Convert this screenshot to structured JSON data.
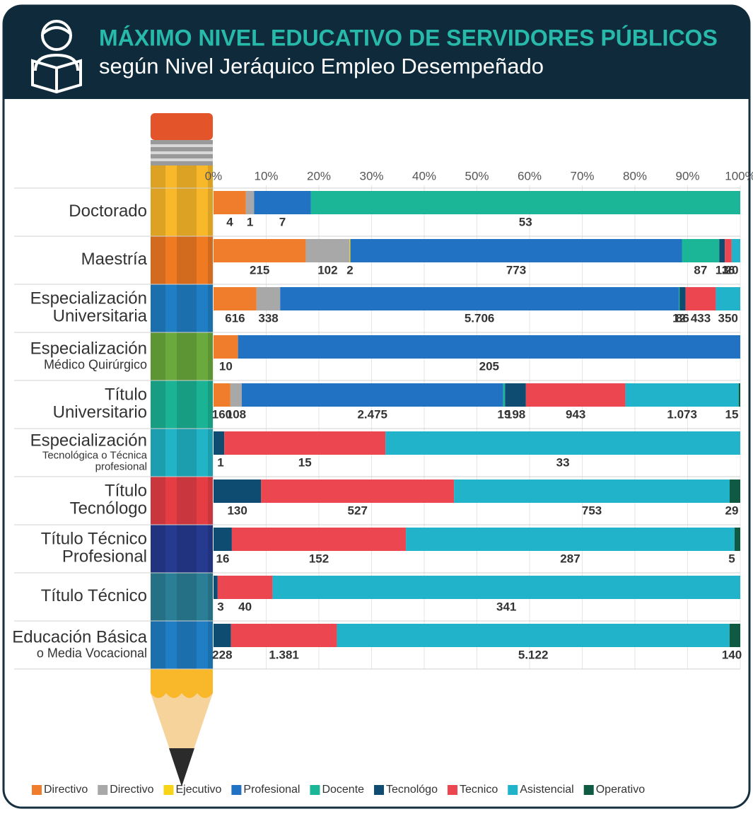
{
  "chart_data": {
    "type": "bar",
    "orientation": "horizontal",
    "stacked": "percent",
    "title": "MÁXIMO NIVEL EDUCATIVO DE SERVIDORES PÚBLICOS",
    "subtitle": "según Nivel Jeráquico Empleo Desempeñado",
    "categories": [
      "Doctorado",
      "Maestría",
      "Especialización\nUniversitaria",
      "Especialización\nMédico Quirúrgico",
      "Título\nUniversitario",
      "Especialización\nTecnológica o Técnica\nprofesional",
      "Título\nTecnólogo",
      "Título Técnico\nProfesional",
      "Título Técnico",
      "Educación Básica\no Media Vocacional"
    ],
    "xlim": [
      0,
      100
    ],
    "xticks": [
      {
        "value": 0,
        "label": "0%"
      },
      {
        "value": 10,
        "label": "10%"
      },
      {
        "value": 20,
        "label": "20%"
      },
      {
        "value": 30,
        "label": "30%"
      },
      {
        "value": 40,
        "label": "40%"
      },
      {
        "value": 50,
        "label": "50%"
      },
      {
        "value": 60,
        "label": "60%"
      },
      {
        "value": 70,
        "label": "70%"
      },
      {
        "value": 80,
        "label": "80%"
      },
      {
        "value": 90,
        "label": "90%"
      },
      {
        "value": 100,
        "label": "100%"
      }
    ],
    "grid": true,
    "series": [
      {
        "name": "Directivo",
        "color": "#f07d2c",
        "values": [
          4,
          215,
          616,
          10,
          160,
          null,
          null,
          null,
          null,
          null
        ]
      },
      {
        "name": "Directivo",
        "color": "#a8a8a8",
        "values": [
          1,
          102,
          338,
          null,
          108,
          null,
          null,
          null,
          null,
          null
        ]
      },
      {
        "name": "Ejecutivo",
        "color": "#f7d417",
        "values": [
          null,
          2,
          null,
          null,
          null,
          null,
          null,
          null,
          null,
          null
        ]
      },
      {
        "name": "Profesional",
        "color": "#2272c3",
        "values": [
          7,
          773,
          5706,
          205,
          2475,
          null,
          null,
          null,
          null,
          null
        ],
        "value_labels": [
          "7",
          "773",
          "5.706",
          "205",
          "2.475",
          null,
          null,
          null,
          null,
          null
        ]
      },
      {
        "name": "Docente",
        "color": "#1bb597",
        "values": [
          53,
          87,
          12,
          null,
          19,
          null,
          null,
          null,
          null,
          null
        ]
      },
      {
        "name": "Tecnológo",
        "color": "#0f4c72",
        "values": [
          null,
          13,
          86,
          null,
          198,
          1,
          130,
          16,
          3,
          228
        ]
      },
      {
        "name": "Tecnico",
        "color": "#ec4650",
        "values": [
          null,
          16,
          433,
          null,
          943,
          15,
          527,
          152,
          40,
          1381
        ],
        "value_labels": [
          null,
          "16",
          "433",
          null,
          "943",
          "15",
          "527",
          "152",
          "40",
          "1.381"
        ]
      },
      {
        "name": "Asistencial",
        "color": "#21b3c9",
        "values": [
          null,
          20,
          350,
          null,
          1073,
          33,
          753,
          287,
          341,
          5122
        ],
        "value_labels": [
          null,
          "20",
          "350",
          null,
          "1.073",
          "33",
          "753",
          "287",
          "341",
          "5.122"
        ]
      },
      {
        "name": "Operativo",
        "color": "#0e5a43",
        "values": [
          null,
          null,
          null,
          null,
          15,
          null,
          29,
          5,
          null,
          140
        ]
      }
    ]
  }
}
